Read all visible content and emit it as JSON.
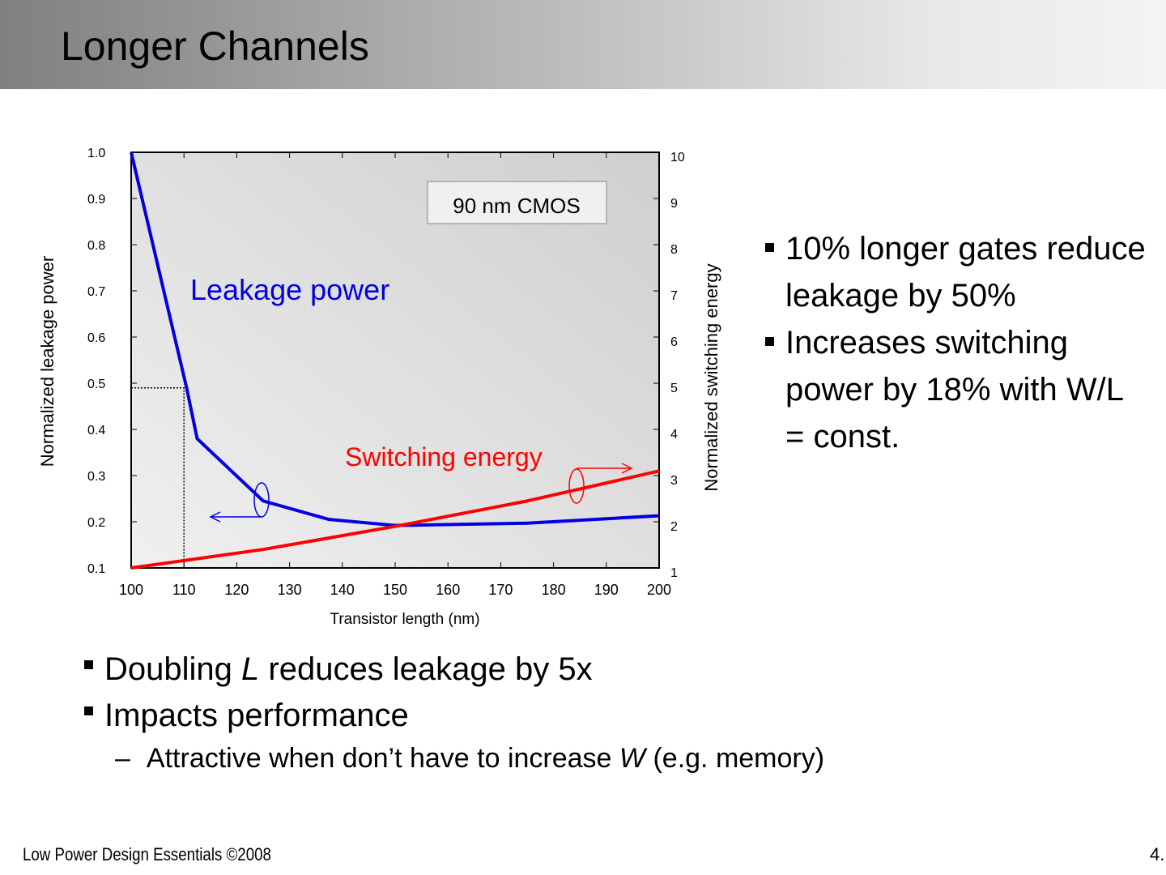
{
  "title": "Longer Channels",
  "right_bullets": [
    "10% longer gates reduce leakage by 50%",
    "Increases switching power by 18% with W/L = const."
  ],
  "bottom_bullets": [
    {
      "parts": [
        "Doubling ",
        "L",
        " reduces leakage by 5x"
      ]
    },
    {
      "parts": [
        "Impacts performance"
      ]
    }
  ],
  "sub_bullet": {
    "dash": "–",
    "parts": [
      "Attractive when don’t have to increase ",
      "W",
      " (e.g. memory)"
    ]
  },
  "footer": "Low Power Design Essentials ©2008",
  "page_number": "4.",
  "chart_data": {
    "type": "line",
    "xlabel": "Transistor length (nm)",
    "ylabel": "Normalized leakage power",
    "y2label": "Normalized switching energy",
    "xlim": [
      100,
      200
    ],
    "ylim": [
      0.1,
      1.0
    ],
    "y2lim": [
      1,
      10
    ],
    "x_ticks": [
      "100",
      "110",
      "120",
      "130",
      "140",
      "150",
      "160",
      "170",
      "180",
      "190",
      "200"
    ],
    "y_ticks": [
      "0.1",
      "0.2",
      "0.3",
      "0.4",
      "0.5",
      "0.6",
      "0.7",
      "0.8",
      "0.9",
      "1.0"
    ],
    "y2_ticks": [
      "1",
      "2",
      "3",
      "4",
      "5",
      "6",
      "7",
      "8",
      "9",
      "10"
    ],
    "annotation": "90 nm CMOS",
    "series": [
      {
        "name": "Leakage power",
        "axis": "left",
        "color": "#0000e0",
        "x": [
          100,
          110.5,
          112.5,
          125,
          137.5,
          150,
          175,
          200
        ],
        "y": [
          1.0,
          0.49,
          0.38,
          0.245,
          0.205,
          0.192,
          0.197,
          0.213
        ]
      },
      {
        "name": "Switching energy",
        "axis": "right",
        "color": "#ff0000",
        "x": [
          100,
          125,
          150,
          175,
          200
        ],
        "y": [
          1.0,
          1.4,
          1.9,
          2.45,
          3.1
        ]
      }
    ],
    "reference_point": {
      "x": 110,
      "y": 0.49
    }
  }
}
